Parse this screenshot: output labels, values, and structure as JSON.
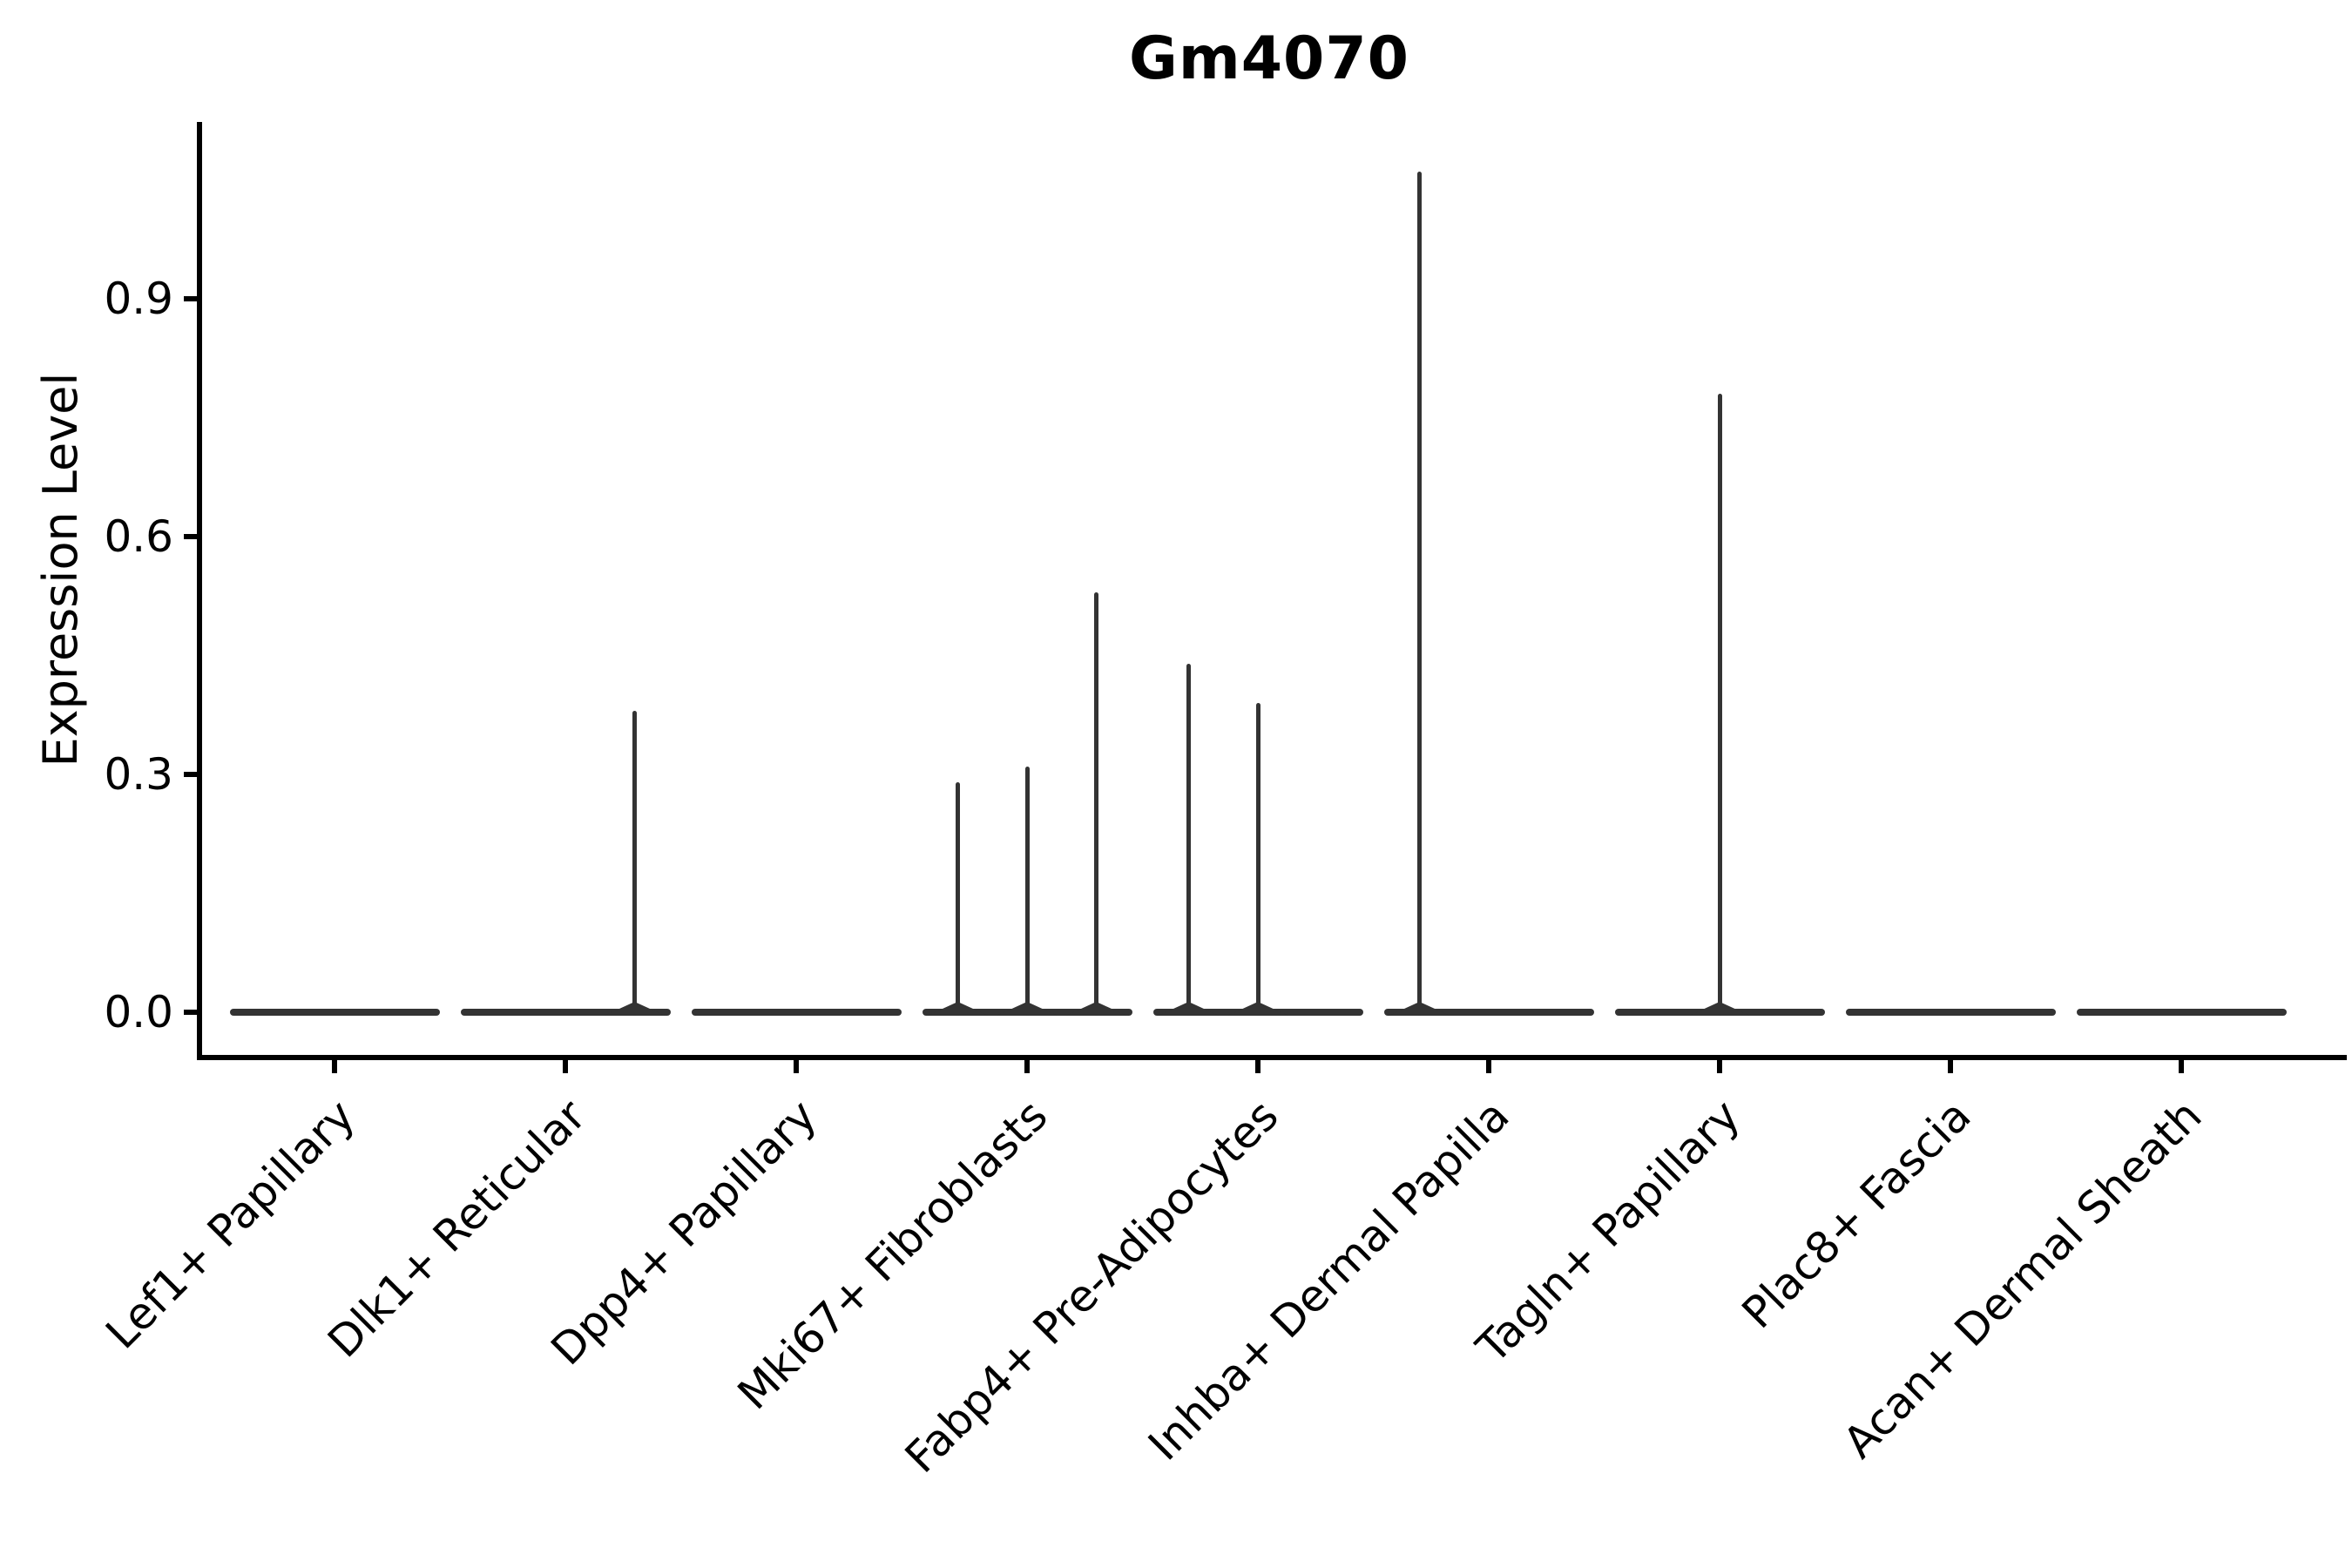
{
  "chart_data": {
    "type": "violin",
    "title": "Gm4070",
    "xlabel": "",
    "ylabel": "Expression Level",
    "ylim": [
      0,
      1.12
    ],
    "yticks": [
      0,
      0.3,
      0.6,
      0.9
    ],
    "ytick_labels": [
      "0.0",
      "0.3",
      "0.6",
      "0.9"
    ],
    "grid": false,
    "legend_position": "none",
    "categories": [
      "Lef1+ Papillary",
      "Dlk1+ Reticular",
      "Dpp4+ Papillary",
      "Mki67+ Fibroblasts",
      "Fabp4+ Pre-Adipocytes",
      "Inhba+ Dermal Papilla",
      "Tagln+ Papillary",
      "Plac8+ Fascia",
      "Acan+ Dermal Sheath"
    ],
    "violins": [
      {
        "category": "Lef1+ Papillary",
        "zero_line": true,
        "spikes": []
      },
      {
        "category": "Dlk1+ Reticular",
        "zero_line": true,
        "spikes": [
          {
            "offset": 0.3,
            "value": 0.38
          }
        ]
      },
      {
        "category": "Dpp4+ Papillary",
        "zero_line": true,
        "spikes": []
      },
      {
        "category": "Mki67+ Fibroblasts",
        "zero_line": true,
        "spikes": [
          {
            "offset": -0.3,
            "value": 0.29
          },
          {
            "offset": 0,
            "value": 0.31
          },
          {
            "offset": 0.3,
            "value": 0.53
          }
        ]
      },
      {
        "category": "Fabp4+ Pre-Adipocytes",
        "zero_line": true,
        "spikes": [
          {
            "offset": -0.3,
            "value": 0.44
          },
          {
            "offset": 0,
            "value": 0.39
          }
        ]
      },
      {
        "category": "Inhba+ Dermal Papilla",
        "zero_line": true,
        "spikes": [
          {
            "offset": -0.3,
            "value": 1.06
          }
        ]
      },
      {
        "category": "Tagln+ Papillary",
        "zero_line": true,
        "spikes": [
          {
            "offset": 0,
            "value": 0.78
          }
        ]
      },
      {
        "category": "Plac8+ Fascia",
        "zero_line": true,
        "spikes": []
      },
      {
        "category": "Acan+ Dermal Sheath",
        "zero_line": true,
        "spikes": []
      }
    ],
    "colors": {
      "violin": "#333333",
      "axis": "#000000",
      "text": "#000000",
      "background": "#ffffff"
    }
  }
}
